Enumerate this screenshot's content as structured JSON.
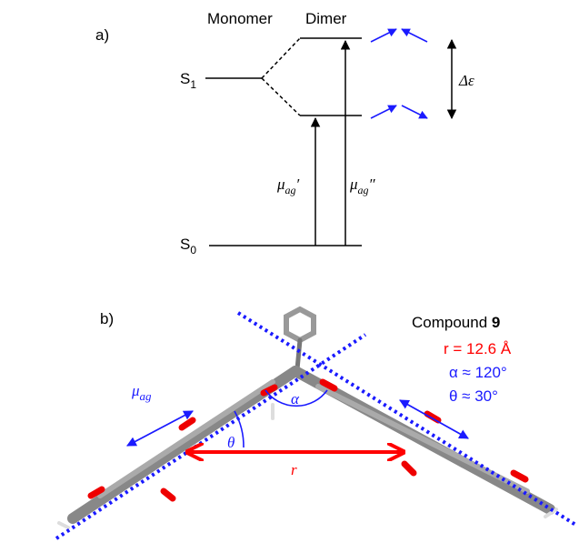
{
  "panel_a": {
    "label": "a)",
    "columns": [
      "Monomer",
      "Dimer"
    ],
    "states": [
      {
        "symbol": "S",
        "subscript": "1"
      },
      {
        "symbol": "S",
        "subscript": "0"
      }
    ],
    "transitions": [
      {
        "symbol": "μ",
        "subscript": "ag",
        "prime": "′"
      },
      {
        "symbol": "μ",
        "subscript": "ag",
        "prime": "″"
      }
    ],
    "splitting": "Δε"
  },
  "panel_b": {
    "label": "b)",
    "compound": {
      "name": "Compound",
      "number": "9"
    },
    "parameters": [
      "r = 12.6 Å",
      "α ≈ 120°",
      "θ ≈ 30°"
    ],
    "dipole": {
      "symbol": "μ",
      "subscript": "ag"
    },
    "angle_labels": [
      "α",
      "θ"
    ],
    "distance_label": "r"
  }
}
